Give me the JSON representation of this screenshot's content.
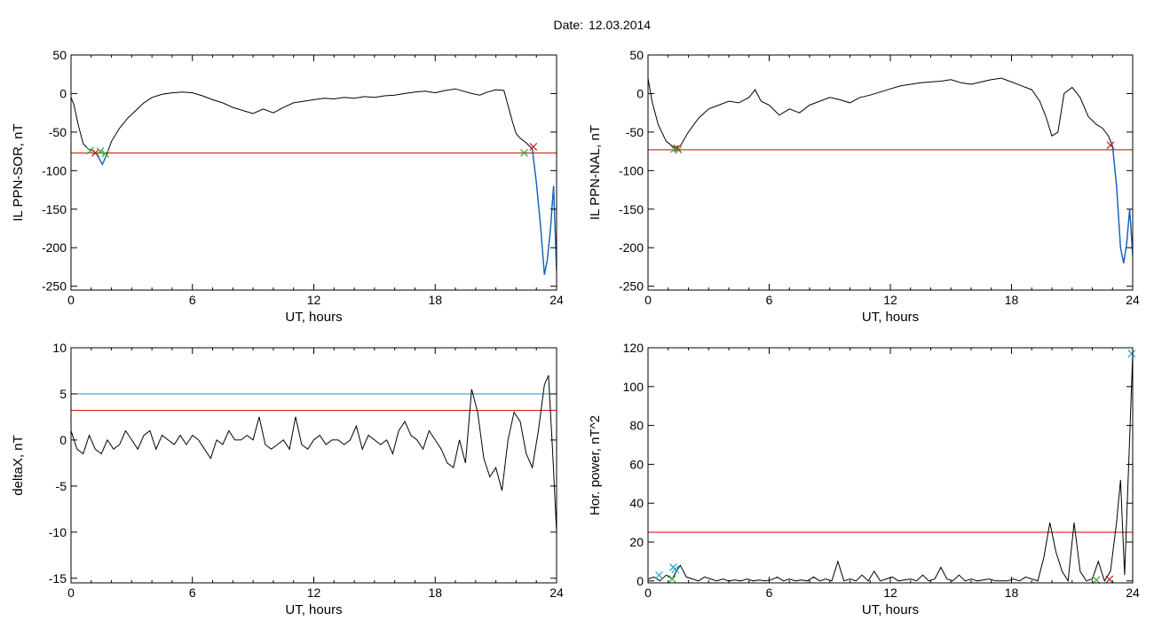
{
  "title": {
    "label": "Date:",
    "value": "12.03.2014"
  },
  "colors": {
    "trace": "#000000",
    "threshold_red": "#d00000",
    "threshold_blue": "#1f8fc6",
    "storm_blue": "#1560c0",
    "marker_green": "#3aa83a",
    "marker_red": "#c02020",
    "marker_cyan": "#1fa3d0"
  },
  "chart_data": [
    {
      "type": "line",
      "id": "sor",
      "ylabel": "IL PPN-SOR, nT",
      "xlabel": "UT, hours",
      "xlim": [
        0,
        24
      ],
      "ylim": [
        -255,
        50
      ],
      "xticks": [
        0,
        6,
        12,
        18,
        24
      ],
      "yticks": [
        50,
        0,
        -50,
        -100,
        -150,
        -200,
        -250
      ],
      "series": [
        {
          "x": [
            0,
            0.15,
            0.35,
            0.6,
            0.85,
            1.1,
            1.35,
            1.55,
            1.75,
            2.0,
            2.4,
            2.8,
            3.2,
            3.6,
            4.0,
            4.5,
            5.0,
            5.5,
            6.0,
            6.5,
            7.0,
            7.5,
            8.0,
            8.5,
            9.0,
            9.5,
            10.0,
            10.5,
            11.0,
            11.5,
            12.0,
            12.5,
            13.0,
            13.5,
            14.0,
            14.5,
            15.0,
            15.5,
            16.0,
            16.5,
            17.0,
            17.5,
            18.0,
            18.5,
            19.0,
            19.4,
            19.8,
            20.2,
            20.6,
            21.0,
            21.4,
            21.8,
            22.0,
            22.2,
            22.5,
            22.8,
            23.0,
            23.2,
            23.4,
            23.55,
            23.7,
            23.85,
            24.0
          ],
          "y": [
            -5,
            -15,
            -40,
            -65,
            -72,
            -74,
            -82,
            -92,
            -80,
            -62,
            -45,
            -32,
            -22,
            -12,
            -5,
            -1,
            1,
            2,
            1,
            -3,
            -8,
            -12,
            -18,
            -22,
            -26,
            -20,
            -25,
            -18,
            -12,
            -10,
            -8,
            -6,
            -7,
            -5,
            -6,
            -4,
            -5,
            -3,
            -2,
            0,
            2,
            3,
            1,
            4,
            6,
            3,
            0,
            -2,
            2,
            5,
            4,
            -35,
            -52,
            -58,
            -64,
            -72,
            -115,
            -170,
            -235,
            -215,
            -175,
            -120,
            -230
          ]
        }
      ],
      "threshold_red": -77,
      "colored_segments": [
        {
          "color": "blue",
          "x_range": [
            1.1,
            1.75
          ]
        },
        {
          "color": "blue",
          "x_range": [
            22.8,
            24.0
          ]
        }
      ],
      "markers": [
        {
          "x": 0.95,
          "y": -74,
          "kind": "x",
          "color": "green"
        },
        {
          "x": 1.2,
          "y": -77,
          "kind": "x",
          "color": "red"
        },
        {
          "x": 1.45,
          "y": -75,
          "kind": "x",
          "color": "green"
        },
        {
          "x": 1.7,
          "y": -78,
          "kind": "x",
          "color": "green"
        },
        {
          "x": 22.4,
          "y": -77,
          "kind": "x",
          "color": "green"
        },
        {
          "x": 22.85,
          "y": -69,
          "kind": "x",
          "color": "red"
        }
      ]
    },
    {
      "type": "line",
      "id": "nal",
      "ylabel": "IL PPN-NAL, nT",
      "xlabel": "UT, hours",
      "xlim": [
        0,
        24
      ],
      "ylim": [
        -255,
        50
      ],
      "xticks": [
        0,
        6,
        12,
        18,
        24
      ],
      "yticks": [
        50,
        0,
        -50,
        -100,
        -150,
        -200,
        -250
      ],
      "series": [
        {
          "x": [
            0,
            0.2,
            0.5,
            0.9,
            1.3,
            1.6,
            2.0,
            2.5,
            3.0,
            3.5,
            4.0,
            4.5,
            5.0,
            5.3,
            5.6,
            6.0,
            6.5,
            7.0,
            7.5,
            8.0,
            8.5,
            9.0,
            9.5,
            10.0,
            10.5,
            11.0,
            11.5,
            12.0,
            12.5,
            13.0,
            13.5,
            14.0,
            14.5,
            15.0,
            15.5,
            16.0,
            16.5,
            17.0,
            17.5,
            18.0,
            18.5,
            19.0,
            19.4,
            19.7,
            20.0,
            20.3,
            20.6,
            21.0,
            21.4,
            21.8,
            22.2,
            22.5,
            22.8,
            23.0,
            23.2,
            23.4,
            23.55,
            23.7,
            23.85,
            24.0
          ],
          "y": [
            20,
            -10,
            -40,
            -62,
            -70,
            -68,
            -50,
            -32,
            -20,
            -15,
            -10,
            -12,
            -5,
            5,
            -10,
            -15,
            -28,
            -20,
            -25,
            -15,
            -10,
            -5,
            -8,
            -12,
            -5,
            -2,
            2,
            6,
            10,
            12,
            14,
            15,
            16,
            18,
            14,
            12,
            15,
            18,
            20,
            15,
            10,
            5,
            -10,
            -30,
            -55,
            -50,
            0,
            8,
            -5,
            -30,
            -40,
            -45,
            -55,
            -68,
            -120,
            -200,
            -220,
            -195,
            -150,
            -210
          ]
        }
      ],
      "threshold_red": -73,
      "colored_segments": [
        {
          "color": "blue",
          "x_range": [
            22.9,
            24.0
          ]
        }
      ],
      "markers": [
        {
          "x": 1.3,
          "y": -72,
          "kind": "x",
          "color": "green"
        },
        {
          "x": 1.5,
          "y": -73,
          "kind": "x",
          "color": "green"
        },
        {
          "x": 1.45,
          "y": -71,
          "kind": "x",
          "color": "red"
        },
        {
          "x": 22.9,
          "y": -67,
          "kind": "x",
          "color": "red"
        }
      ]
    },
    {
      "type": "line",
      "id": "deltax",
      "ylabel": "deltaX, nT",
      "xlabel": "UT, hours",
      "xlim": [
        0,
        24
      ],
      "ylim": [
        -15.5,
        10
      ],
      "xticks": [
        0,
        6,
        12,
        18,
        24
      ],
      "yticks": [
        10,
        5,
        0,
        -5,
        -10,
        -15
      ],
      "series": [
        {
          "x": [
            0,
            0.3,
            0.6,
            0.9,
            1.2,
            1.5,
            1.8,
            2.1,
            2.4,
            2.7,
            3.0,
            3.3,
            3.6,
            3.9,
            4.2,
            4.5,
            4.8,
            5.1,
            5.4,
            5.7,
            6.0,
            6.3,
            6.6,
            6.9,
            7.2,
            7.5,
            7.8,
            8.1,
            8.4,
            8.7,
            9.0,
            9.3,
            9.6,
            9.9,
            10.2,
            10.5,
            10.8,
            11.1,
            11.4,
            11.7,
            12.0,
            12.3,
            12.6,
            12.9,
            13.2,
            13.5,
            13.8,
            14.1,
            14.4,
            14.7,
            15.0,
            15.3,
            15.6,
            15.9,
            16.2,
            16.5,
            16.8,
            17.1,
            17.4,
            17.7,
            18.0,
            18.3,
            18.6,
            18.9,
            19.2,
            19.5,
            19.8,
            20.1,
            20.4,
            20.7,
            21.0,
            21.3,
            21.6,
            21.9,
            22.2,
            22.5,
            22.8,
            23.1,
            23.4,
            23.6,
            23.8,
            24.0
          ],
          "y": [
            1,
            -1,
            -1.5,
            0.5,
            -1,
            -1.5,
            0,
            -1,
            -0.5,
            1,
            0,
            -1,
            0.5,
            1,
            -1,
            0.5,
            0,
            -0.5,
            0.5,
            -0.5,
            0.5,
            0,
            -1,
            -2,
            0,
            -0.5,
            1,
            0,
            0,
            0.5,
            0,
            2.5,
            -0.5,
            -1,
            -0.5,
            0,
            -1,
            2.5,
            -0.5,
            -1,
            0,
            0.5,
            -0.5,
            0,
            0,
            -0.5,
            0,
            1.5,
            -1,
            0.5,
            0,
            -0.5,
            0,
            -1.5,
            1,
            2,
            0.5,
            0,
            -1,
            1,
            0,
            -1,
            -2.5,
            -3,
            0,
            -2.5,
            5.5,
            3,
            -2,
            -4,
            -3,
            -5.5,
            0,
            3,
            2,
            -1.5,
            -3,
            1,
            6,
            7,
            -1,
            -10
          ]
        }
      ],
      "threshold_red": 3.2,
      "threshold_blue": 5.0
    },
    {
      "type": "line",
      "id": "power",
      "ylabel": "Hor. power, nT^2",
      "xlabel": "UT, hours",
      "xlim": [
        0,
        24
      ],
      "ylim": [
        -1,
        120
      ],
      "xticks": [
        0,
        6,
        12,
        18,
        24
      ],
      "yticks": [
        120,
        100,
        80,
        60,
        40,
        20,
        0
      ],
      "series": [
        {
          "x": [
            0,
            0.3,
            0.6,
            0.9,
            1.2,
            1.4,
            1.6,
            1.9,
            2.2,
            2.5,
            2.8,
            3.1,
            3.4,
            3.7,
            4.0,
            4.3,
            4.6,
            4.9,
            5.2,
            5.5,
            5.8,
            6.1,
            6.4,
            6.7,
            7.0,
            7.3,
            7.6,
            7.9,
            8.2,
            8.5,
            8.8,
            9.1,
            9.4,
            9.7,
            10.0,
            10.3,
            10.6,
            10.9,
            11.2,
            11.5,
            11.8,
            12.1,
            12.4,
            12.7,
            13.0,
            13.3,
            13.6,
            13.9,
            14.2,
            14.5,
            14.8,
            15.1,
            15.4,
            15.7,
            16.0,
            16.3,
            16.6,
            16.9,
            17.2,
            17.5,
            17.8,
            18.1,
            18.4,
            18.7,
            19.0,
            19.3,
            19.6,
            19.9,
            20.2,
            20.5,
            20.8,
            21.1,
            21.4,
            21.7,
            22.0,
            22.3,
            22.6,
            22.9,
            23.2,
            23.4,
            23.6,
            23.8,
            24.0
          ],
          "y": [
            1,
            2,
            0,
            3,
            1,
            5,
            8,
            2,
            1,
            0,
            2,
            1,
            0,
            1,
            0,
            0.5,
            0,
            1,
            0,
            0.5,
            0,
            0.5,
            2,
            0,
            1,
            0,
            0.5,
            0,
            2,
            0,
            1,
            0,
            10,
            0,
            1,
            0,
            3,
            0,
            5,
            0,
            1,
            2,
            0,
            0.5,
            1,
            0,
            3,
            0,
            1,
            7,
            1,
            0,
            3,
            0,
            1,
            0,
            0.5,
            1,
            0,
            0,
            0,
            1,
            0,
            2,
            1,
            0,
            12,
            30,
            15,
            5,
            0,
            30,
            5,
            0,
            1,
            10,
            0,
            5,
            30,
            52,
            3,
            60,
            117
          ]
        }
      ],
      "threshold_red": 25,
      "markers": [
        {
          "x": 0.55,
          "y": 3,
          "kind": "x",
          "color": "cyan"
        },
        {
          "x": 1.25,
          "y": 7,
          "kind": "x",
          "color": "cyan"
        },
        {
          "x": 1.35,
          "y": 6,
          "kind": "x",
          "color": "cyan"
        },
        {
          "x": 1.2,
          "y": 1,
          "kind": "x",
          "color": "green"
        },
        {
          "x": 22.2,
          "y": 0.5,
          "kind": "x",
          "color": "green"
        },
        {
          "x": 22.85,
          "y": 0.8,
          "kind": "x",
          "color": "red"
        },
        {
          "x": 23.95,
          "y": 117,
          "kind": "x",
          "color": "cyan"
        }
      ]
    }
  ]
}
